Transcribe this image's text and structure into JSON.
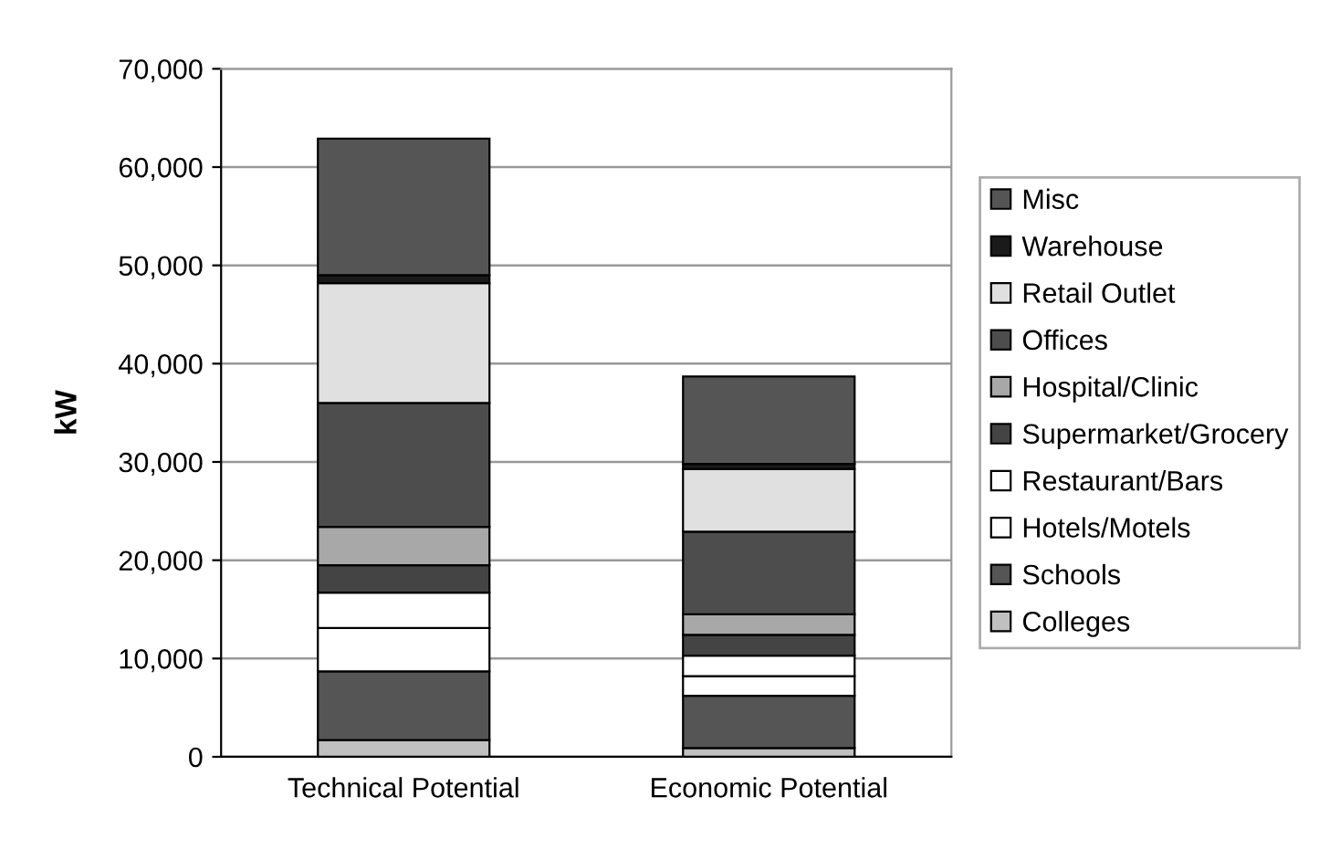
{
  "chart_data": {
    "type": "bar",
    "stacked": true,
    "ylabel": "kW",
    "categories": [
      "Technical Potential",
      "Economic Potential"
    ],
    "series": [
      {
        "name": "Colleges",
        "color": "#c0c0c0",
        "values": [
          1700,
          900
        ]
      },
      {
        "name": "Schools",
        "color": "#555555",
        "values": [
          7000,
          5300
        ]
      },
      {
        "name": "Hotels/Motels",
        "color": "#ffffff",
        "values": [
          4400,
          2000
        ]
      },
      {
        "name": "Restaurant/Bars",
        "color": "#ffffff",
        "values": [
          3600,
          2100
        ]
      },
      {
        "name": "Supermarket/Grocery",
        "color": "#444444",
        "values": [
          2800,
          2100
        ]
      },
      {
        "name": "Hospital/Clinic",
        "color": "#a8a8a8",
        "values": [
          3900,
          2100
        ]
      },
      {
        "name": "Offices",
        "color": "#4d4d4d",
        "values": [
          12600,
          8400
        ]
      },
      {
        "name": "Retail Outlet",
        "color": "#e0e0e0",
        "values": [
          12200,
          6400
        ]
      },
      {
        "name": "Warehouse",
        "color": "#1a1a1a",
        "values": [
          800,
          500
        ]
      },
      {
        "name": "Misc",
        "color": "#555555",
        "values": [
          13900,
          8900
        ]
      }
    ],
    "ylim": [
      0,
      70000
    ],
    "yticks": [
      {
        "value": 0,
        "label": "0"
      },
      {
        "value": 10000,
        "label": "10,000"
      },
      {
        "value": 20000,
        "label": "20,000"
      },
      {
        "value": 30000,
        "label": "30,000"
      },
      {
        "value": 40000,
        "label": "40,000"
      },
      {
        "value": 50000,
        "label": "50,000"
      },
      {
        "value": 60000,
        "label": "60,000"
      },
      {
        "value": 70000,
        "label": "70,000"
      }
    ],
    "grid": "y",
    "legend": "right"
  }
}
